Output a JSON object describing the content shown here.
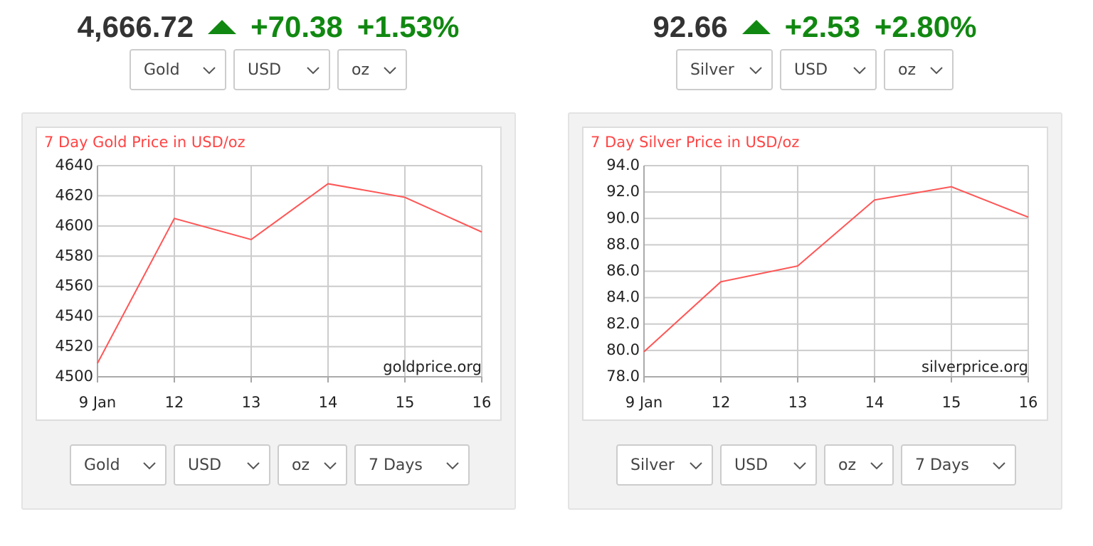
{
  "tickers": [
    {
      "price": "4,666.72",
      "change": "+70.38",
      "percent": "+1.53%"
    },
    {
      "price": "92.66",
      "change": "+2.53",
      "percent": "+2.80%"
    }
  ],
  "selectors_top": [
    [
      "Gold",
      "USD",
      "oz"
    ],
    [
      "Silver",
      "USD",
      "oz"
    ]
  ],
  "selectors_bottom": [
    [
      "Gold",
      "USD",
      "oz",
      "7 Days"
    ],
    [
      "Silver",
      "USD",
      "oz",
      "7 Days"
    ]
  ],
  "chart_data": [
    {
      "type": "line",
      "title": "7 Day Gold Price in USD/oz",
      "watermark": "goldprice.org",
      "categories": [
        "9 Jan",
        "12",
        "13",
        "14",
        "15",
        "16"
      ],
      "values": [
        4509,
        4605,
        4591,
        4628,
        4619,
        4596
      ],
      "color": "#ff5555",
      "ylim": [
        4500,
        4640
      ],
      "yticks": [
        4500,
        4520,
        4540,
        4560,
        4580,
        4600,
        4620,
        4640
      ],
      "grid": true
    },
    {
      "type": "line",
      "title": "7 Day Silver Price in USD/oz",
      "watermark": "silverprice.org",
      "categories": [
        "9 Jan",
        "12",
        "13",
        "14",
        "15",
        "16"
      ],
      "values": [
        79.9,
        85.2,
        86.4,
        91.4,
        92.4,
        90.1
      ],
      "color": "#ff5555",
      "ylim": [
        78,
        94
      ],
      "yticks": [
        {
          "value": 78,
          "label": "78.0"
        },
        {
          "value": 80,
          "label": "80.0"
        },
        {
          "value": 82,
          "label": "82.0"
        },
        {
          "value": 84,
          "label": "84.0"
        },
        {
          "value": 86,
          "label": "86.0"
        },
        {
          "value": 88,
          "label": "88.0"
        },
        {
          "value": 90,
          "label": "90.0"
        },
        {
          "value": 92,
          "label": "92.0"
        },
        {
          "value": 94,
          "label": "94.0"
        }
      ],
      "grid": true
    }
  ]
}
